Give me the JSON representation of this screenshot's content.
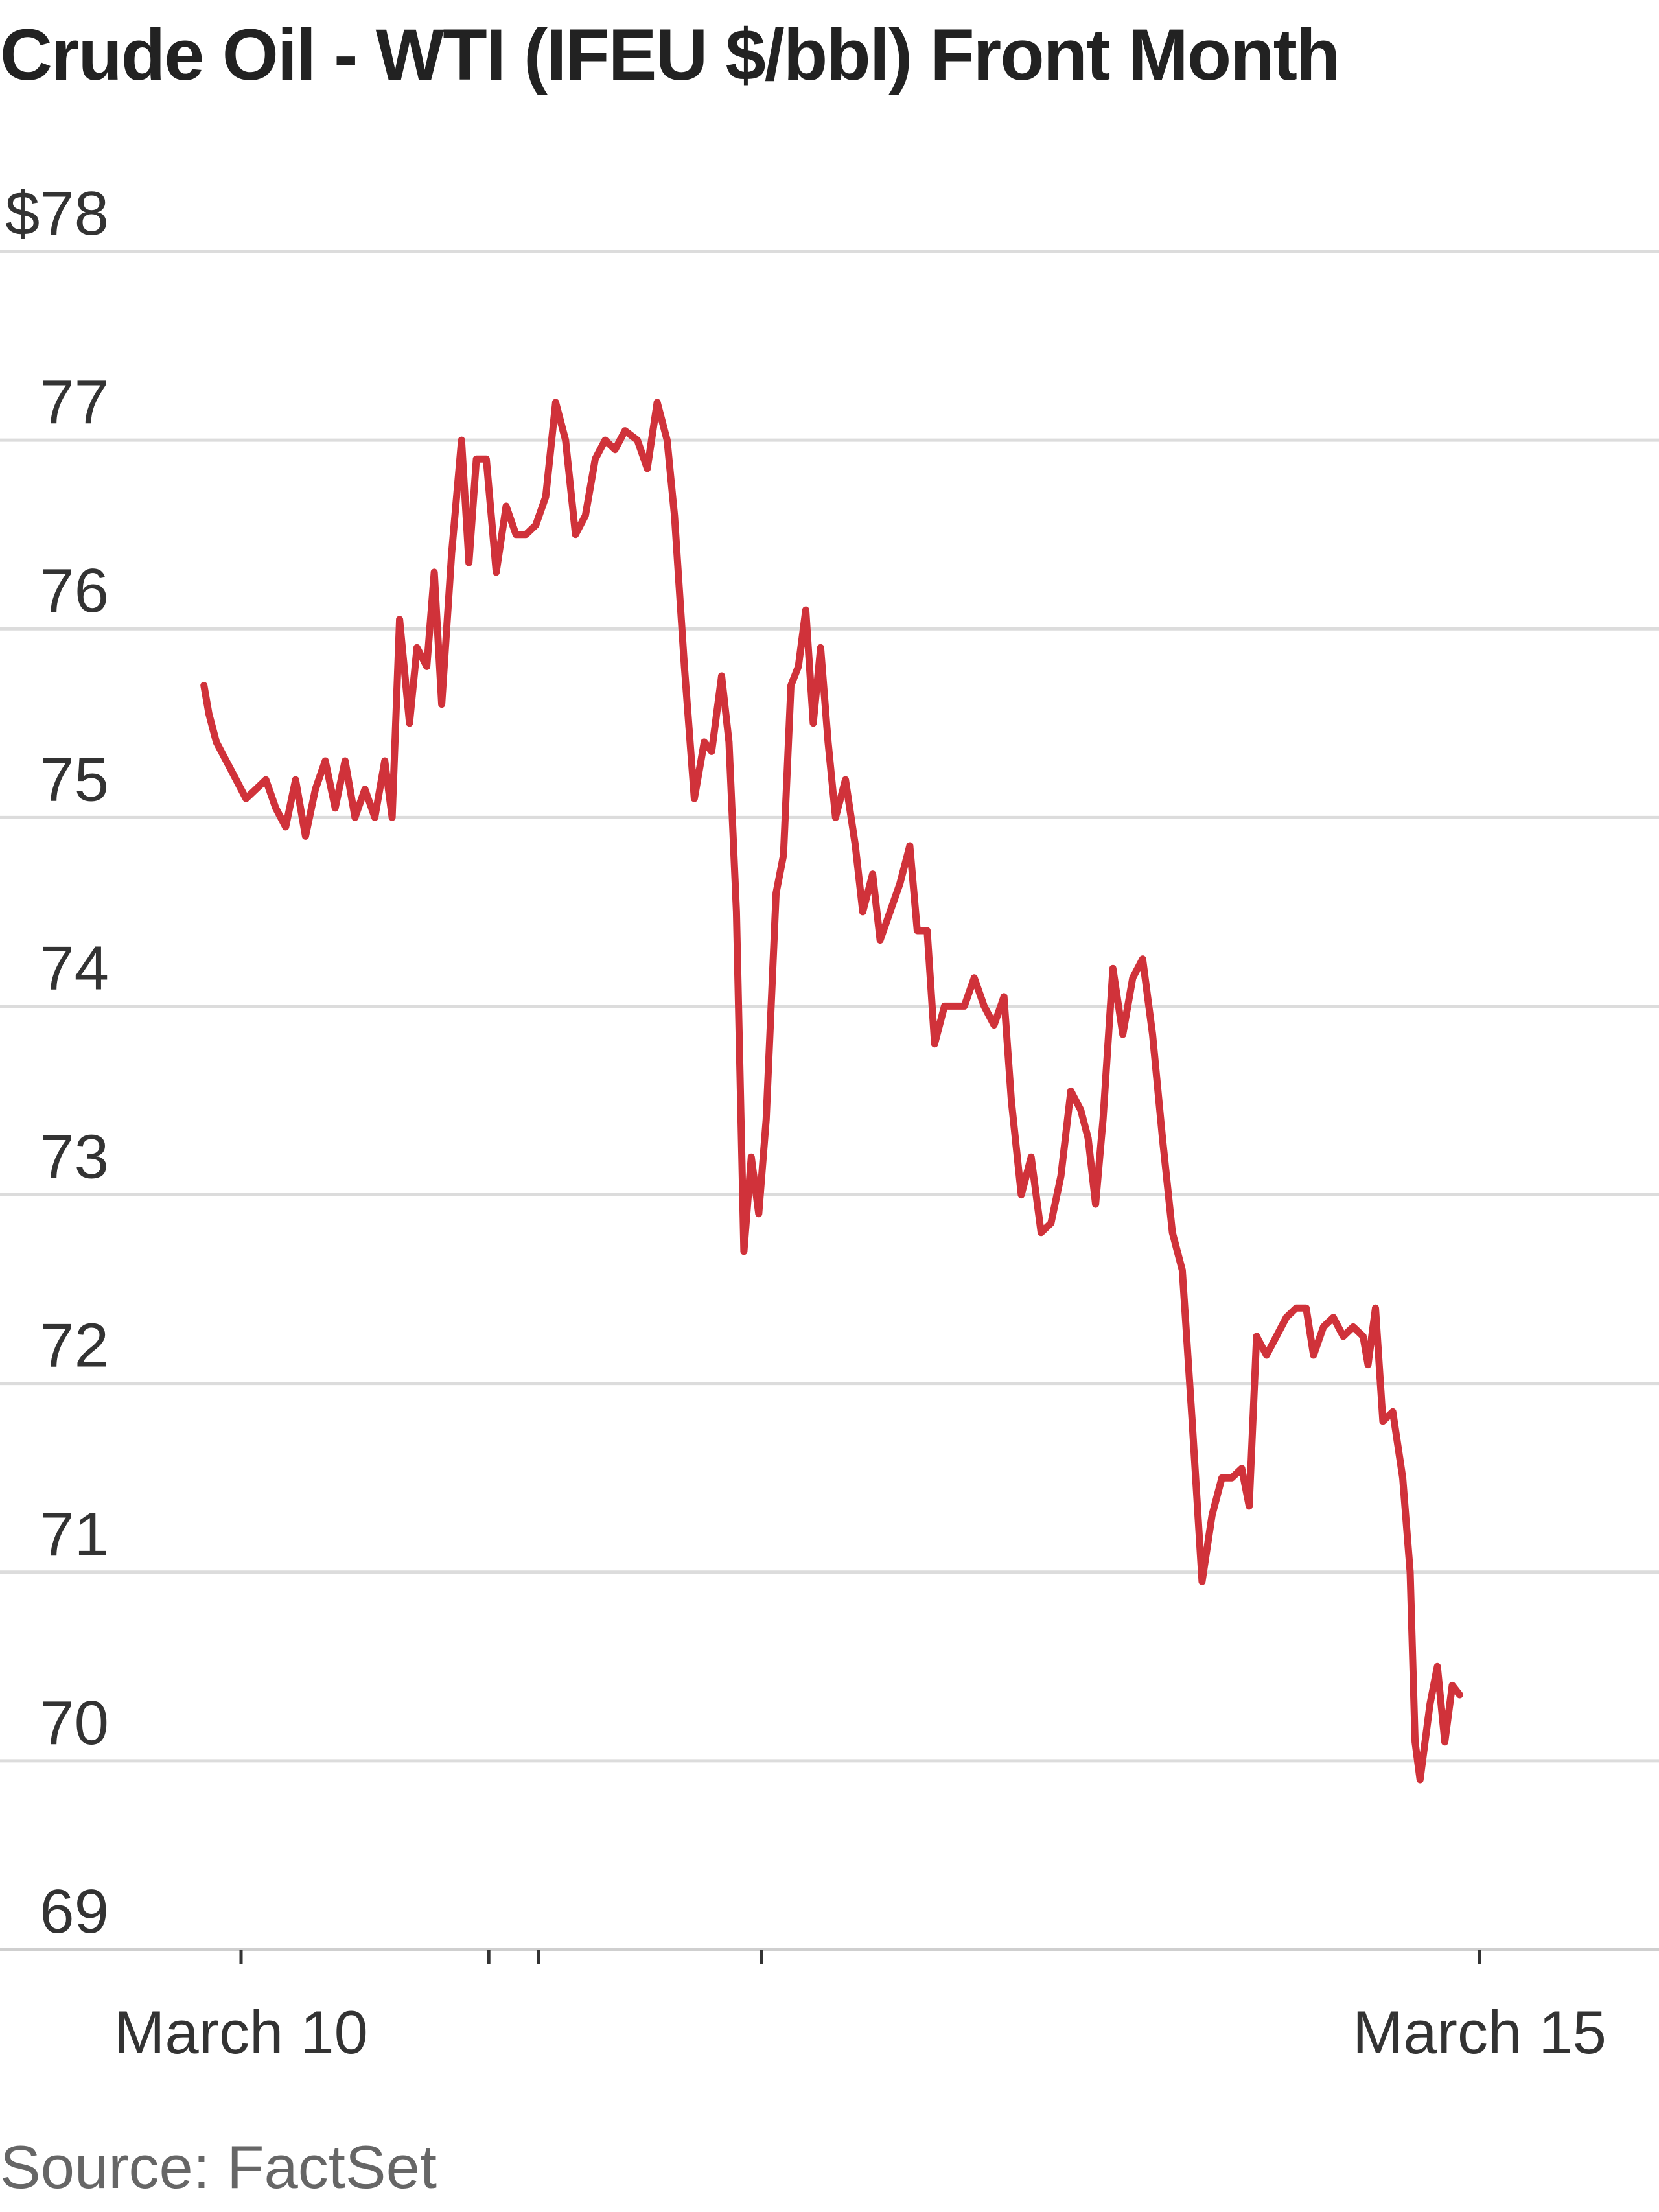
{
  "chart_data": {
    "type": "line",
    "title": "Crude Oil - WTI (IFEU $/bbl) Front Month",
    "source": "Source: FactSet",
    "ylim": [
      69,
      78
    ],
    "y_ticks": [
      {
        "value": 78,
        "label": "$78"
      },
      {
        "value": 77,
        "label": "77"
      },
      {
        "value": 76,
        "label": "76"
      },
      {
        "value": 75,
        "label": "75"
      },
      {
        "value": 74,
        "label": "74"
      },
      {
        "value": 73,
        "label": "73"
      },
      {
        "value": 72,
        "label": "72"
      },
      {
        "value": 71,
        "label": "71"
      },
      {
        "value": 70,
        "label": "70"
      },
      {
        "value": 69,
        "label": "69"
      }
    ],
    "x_tick_labels": [
      {
        "label": "March 10",
        "at_day": 10
      },
      {
        "label": "March 15",
        "at_day": 15
      }
    ],
    "x_unlabeled_ticks_at_day": [
      11,
      11.2,
      12.1
    ],
    "grid": true,
    "legend": "none",
    "line_color": "#d0323a",
    "series": [
      {
        "points": [
          [
            9.85,
            75.7
          ],
          [
            9.87,
            75.55
          ],
          [
            9.9,
            75.4
          ],
          [
            9.94,
            75.3
          ],
          [
            9.98,
            75.2
          ],
          [
            10.02,
            75.1
          ],
          [
            10.06,
            75.15
          ],
          [
            10.1,
            75.2
          ],
          [
            10.14,
            75.05
          ],
          [
            10.18,
            74.95
          ],
          [
            10.22,
            75.2
          ],
          [
            10.26,
            74.9
          ],
          [
            10.3,
            75.15
          ],
          [
            10.34,
            75.3
          ],
          [
            10.38,
            75.05
          ],
          [
            10.42,
            75.3
          ],
          [
            10.46,
            75.0
          ],
          [
            10.5,
            75.15
          ],
          [
            10.54,
            75.0
          ],
          [
            10.58,
            75.3
          ],
          [
            10.61,
            75.0
          ],
          [
            10.64,
            76.05
          ],
          [
            10.68,
            75.5
          ],
          [
            10.71,
            75.9
          ],
          [
            10.75,
            75.8
          ],
          [
            10.78,
            76.3
          ],
          [
            10.81,
            75.6
          ],
          [
            10.85,
            76.4
          ],
          [
            10.89,
            77.0
          ],
          [
            10.92,
            76.35
          ],
          [
            10.95,
            76.9
          ],
          [
            10.99,
            76.9
          ],
          [
            11.03,
            76.3
          ],
          [
            11.07,
            76.65
          ],
          [
            11.11,
            76.5
          ],
          [
            11.15,
            76.5
          ],
          [
            11.19,
            76.55
          ],
          [
            11.23,
            76.7
          ],
          [
            11.27,
            77.2
          ],
          [
            11.31,
            77.0
          ],
          [
            11.35,
            76.5
          ],
          [
            11.39,
            76.6
          ],
          [
            11.43,
            76.9
          ],
          [
            11.47,
            77.0
          ],
          [
            11.51,
            76.95
          ],
          [
            11.55,
            77.05
          ],
          [
            11.6,
            77.0
          ],
          [
            11.64,
            76.85
          ],
          [
            11.68,
            77.2
          ],
          [
            11.72,
            77.0
          ],
          [
            11.75,
            76.6
          ],
          [
            11.79,
            75.8
          ],
          [
            11.83,
            75.1
          ],
          [
            11.87,
            75.4
          ],
          [
            11.9,
            75.35
          ],
          [
            11.94,
            75.75
          ],
          [
            11.97,
            75.4
          ],
          [
            12.0,
            74.5
          ],
          [
            12.03,
            72.7
          ],
          [
            12.06,
            73.2
          ],
          [
            12.09,
            72.9
          ],
          [
            12.12,
            73.4
          ],
          [
            12.16,
            74.6
          ],
          [
            12.19,
            74.8
          ],
          [
            12.22,
            75.7
          ],
          [
            12.25,
            75.8
          ],
          [
            12.28,
            76.1
          ],
          [
            12.31,
            75.5
          ],
          [
            12.34,
            75.9
          ],
          [
            12.37,
            75.4
          ],
          [
            12.4,
            75.0
          ],
          [
            12.44,
            75.2
          ],
          [
            12.48,
            74.85
          ],
          [
            12.51,
            74.5
          ],
          [
            12.55,
            74.7
          ],
          [
            12.58,
            74.35
          ],
          [
            12.62,
            74.5
          ],
          [
            12.66,
            74.65
          ],
          [
            12.7,
            74.85
          ],
          [
            12.73,
            74.4
          ],
          [
            12.77,
            74.4
          ],
          [
            12.8,
            73.8
          ],
          [
            12.84,
            74.0
          ],
          [
            12.88,
            74.0
          ],
          [
            12.92,
            74.0
          ],
          [
            12.96,
            74.15
          ],
          [
            13.0,
            74.0
          ],
          [
            13.04,
            73.9
          ],
          [
            13.08,
            74.05
          ],
          [
            13.11,
            73.5
          ],
          [
            13.15,
            73.0
          ],
          [
            13.19,
            73.2
          ],
          [
            13.23,
            72.8
          ],
          [
            13.27,
            72.85
          ],
          [
            13.31,
            73.1
          ],
          [
            13.35,
            73.55
          ],
          [
            13.39,
            73.45
          ],
          [
            13.42,
            73.3
          ],
          [
            13.45,
            72.95
          ],
          [
            13.48,
            73.4
          ],
          [
            13.52,
            74.2
          ],
          [
            13.56,
            73.85
          ],
          [
            13.6,
            74.15
          ],
          [
            13.64,
            74.25
          ],
          [
            13.68,
            73.85
          ],
          [
            13.72,
            73.3
          ],
          [
            13.76,
            72.8
          ],
          [
            13.8,
            72.6
          ],
          [
            13.84,
            71.8
          ],
          [
            13.88,
            70.95
          ],
          [
            13.92,
            71.3
          ],
          [
            13.96,
            71.5
          ],
          [
            14.0,
            71.5
          ],
          [
            14.04,
            71.55
          ],
          [
            14.07,
            71.35
          ],
          [
            14.1,
            72.25
          ],
          [
            14.14,
            72.15
          ],
          [
            14.18,
            72.25
          ],
          [
            14.22,
            72.35
          ],
          [
            14.26,
            72.4
          ],
          [
            14.3,
            72.4
          ],
          [
            14.33,
            72.15
          ],
          [
            14.37,
            72.3
          ],
          [
            14.41,
            72.35
          ],
          [
            14.45,
            72.25
          ],
          [
            14.49,
            72.3
          ],
          [
            14.53,
            72.25
          ],
          [
            14.55,
            72.1
          ],
          [
            14.58,
            72.4
          ],
          [
            14.61,
            71.8
          ],
          [
            14.65,
            71.85
          ],
          [
            14.69,
            71.5
          ],
          [
            14.72,
            71.0
          ],
          [
            14.74,
            70.1
          ],
          [
            14.76,
            69.9
          ],
          [
            14.8,
            70.3
          ],
          [
            14.83,
            70.5
          ],
          [
            14.86,
            70.1
          ],
          [
            14.89,
            70.4
          ],
          [
            14.92,
            70.35
          ]
        ]
      }
    ]
  }
}
